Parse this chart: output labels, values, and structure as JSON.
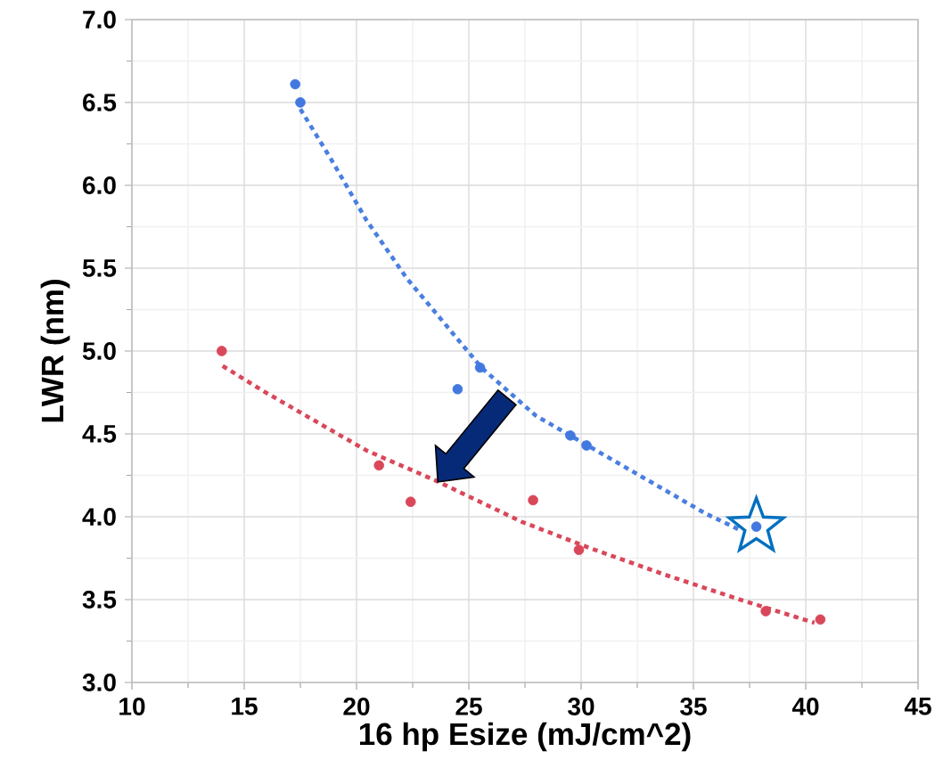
{
  "chart_data": {
    "type": "scatter",
    "xlabel": "16 hp Esize (mJ/cm^2)",
    "ylabel": "LWR (nm)",
    "xlim": [
      10,
      45
    ],
    "ylim": [
      3,
      7
    ],
    "xticks": [
      10,
      15,
      20,
      25,
      30,
      35,
      40,
      45
    ],
    "yticks": [
      {
        "value": 3,
        "label": "3.0"
      },
      {
        "value": 3.5,
        "label": "3.5"
      },
      {
        "value": 4,
        "label": "4.0"
      },
      {
        "value": 4.5,
        "label": "4.5"
      },
      {
        "value": 5,
        "label": "5.0"
      },
      {
        "value": 5.5,
        "label": "5.5"
      },
      {
        "value": 6,
        "label": "6.0"
      },
      {
        "value": 6.5,
        "label": "6.5"
      },
      {
        "value": 7,
        "label": "7.0"
      }
    ],
    "grid": true,
    "series": [
      {
        "type": "line",
        "line_style": "dashed",
        "color": "#4a7fe0",
        "x": [
          17.5,
          18.9,
          20.44,
          22.23,
          24.02,
          25.56,
          27.98,
          30.67,
          33.23,
          35.53,
          37.07
        ],
        "values": [
          6.46,
          6.15,
          5.79,
          5.44,
          5.15,
          4.9,
          4.61,
          4.4,
          4.2,
          4.02,
          3.92
        ]
      },
      {
        "type": "line",
        "line_style": "dashed",
        "color": "#d9485a",
        "x": [
          14.04,
          15.83,
          18.13,
          20.44,
          23.5,
          27.35,
          30.41,
          33.74,
          37.07,
          40.39
        ],
        "values": [
          4.91,
          4.76,
          4.58,
          4.4,
          4.22,
          3.97,
          3.81,
          3.65,
          3.5,
          3.36
        ]
      },
      {
        "marker": "circle",
        "color": "#4278e0",
        "x": [
          17.27,
          17.5,
          24.5,
          25.5,
          29.52,
          30.24,
          37.8
        ],
        "values": [
          6.61,
          6.5,
          4.77,
          4.9,
          4.49,
          4.43,
          3.94
        ]
      },
      {
        "marker": "circle",
        "color": "#d9485a",
        "x": [
          14.0,
          21.0,
          22.41,
          27.86,
          29.9,
          38.22,
          40.65
        ],
        "values": [
          5.0,
          4.31,
          4.09,
          4.1,
          3.8,
          3.43,
          3.38
        ]
      },
      {
        "marker": "star",
        "color": "#0070c0",
        "x": [
          37.8
        ],
        "values": [
          3.94
        ]
      }
    ]
  }
}
